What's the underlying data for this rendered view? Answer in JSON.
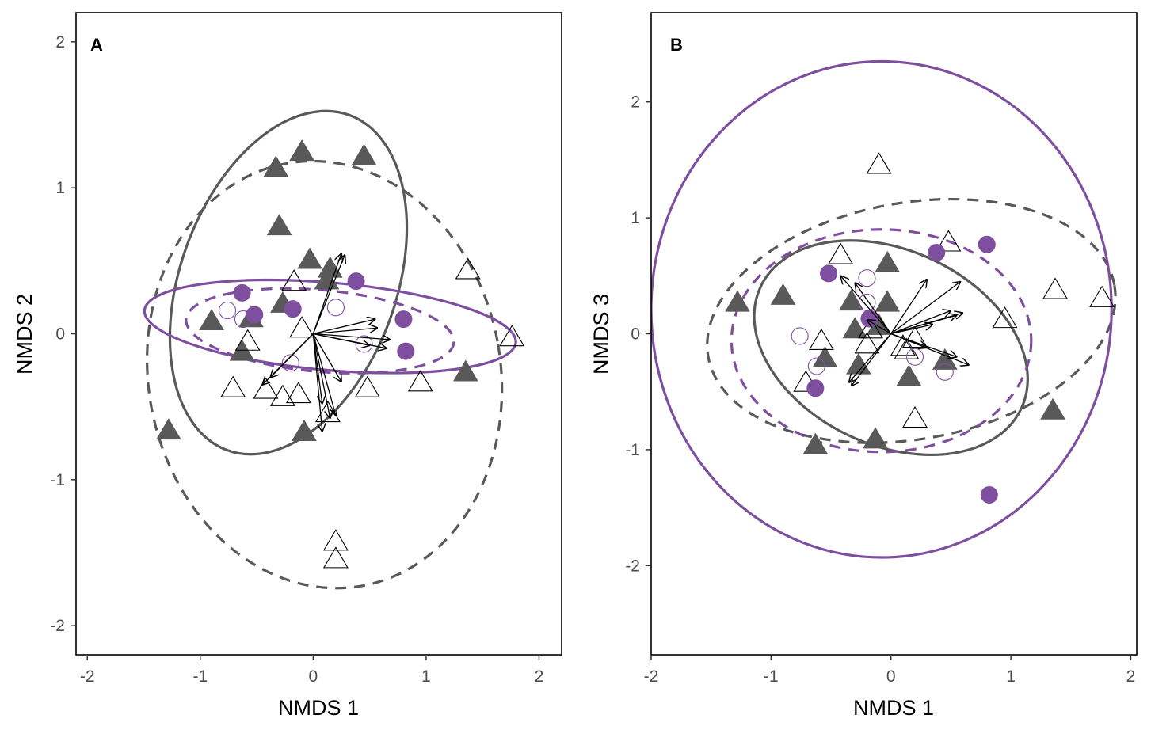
{
  "colors": {
    "purple": "#7f4f9f",
    "gray": "#595959",
    "black": "#000000"
  },
  "chart_data": [
    {
      "type": "scatter",
      "panel_label": "A",
      "xlabel": "NMDS 1",
      "ylabel": "NMDS 2",
      "xlim": [
        -2.1,
        2.2
      ],
      "ylim": [
        -2.2,
        2.2
      ],
      "xticks": [
        -2,
        -1,
        0,
        1,
        2
      ],
      "yticks": [
        -2,
        -1,
        0,
        1,
        2
      ],
      "grid": false,
      "series": [
        {
          "group": "filled-triangle",
          "points": [
            [
              -0.1,
              1.24
            ],
            [
              0.45,
              1.21
            ],
            [
              -0.33,
              1.13
            ],
            [
              -0.3,
              0.73
            ],
            [
              -0.03,
              0.5
            ],
            [
              0.15,
              0.44
            ],
            [
              0.12,
              0.36
            ],
            [
              -0.27,
              0.2
            ],
            [
              -0.9,
              0.08
            ],
            [
              -0.55,
              0.1
            ],
            [
              -0.63,
              -0.13
            ],
            [
              -1.28,
              -0.67
            ],
            [
              -0.08,
              -0.68
            ],
            [
              1.35,
              -0.27
            ]
          ]
        },
        {
          "group": "open-triangle",
          "points": [
            [
              -0.17,
              0.35
            ],
            [
              -0.58,
              -0.06
            ],
            [
              -0.1,
              0.03
            ],
            [
              -0.71,
              -0.38
            ],
            [
              -0.42,
              -0.39
            ],
            [
              -0.27,
              -0.44
            ],
            [
              -0.13,
              -0.42
            ],
            [
              0.48,
              -0.38
            ],
            [
              0.95,
              -0.34
            ],
            [
              1.37,
              0.43
            ],
            [
              1.76,
              -0.03
            ],
            [
              0.2,
              -1.43
            ],
            [
              0.2,
              -1.55
            ],
            [
              0.13,
              -0.55
            ]
          ]
        },
        {
          "group": "filled-circle",
          "points": [
            [
              -0.63,
              0.28
            ],
            [
              0.38,
              0.36
            ],
            [
              -0.18,
              0.17
            ],
            [
              -0.52,
              0.13
            ],
            [
              0.8,
              0.1
            ],
            [
              0.82,
              -0.12
            ]
          ]
        },
        {
          "group": "open-circle",
          "points": [
            [
              -0.76,
              0.16
            ],
            [
              -0.62,
              0.1
            ],
            [
              0.2,
              0.18
            ],
            [
              -0.2,
              -0.2
            ],
            [
              0.45,
              -0.07
            ]
          ]
        }
      ],
      "ellipses": [
        {
          "style": "gray-solid",
          "cx": -0.22,
          "cy": 0.35,
          "rx": 1.58,
          "ry": 0.74,
          "rotation_deg": 70
        },
        {
          "style": "gray-dashed",
          "cx": 0.1,
          "cy": -0.28,
          "rx": 1.56,
          "ry": 1.47,
          "rotation_deg": 10
        },
        {
          "style": "purple-solid",
          "cx": 0.15,
          "cy": 0.05,
          "rx": 1.65,
          "ry": 0.3,
          "rotation_deg": -5
        },
        {
          "style": "purple-dashed",
          "cx": 0.06,
          "cy": 0.02,
          "rx": 1.19,
          "ry": 0.28,
          "rotation_deg": -5
        }
      ],
      "arrows": [
        [
          0.28,
          0.54
        ],
        [
          0.25,
          0.55
        ],
        [
          0.55,
          0.1
        ],
        [
          0.57,
          0.04
        ],
        [
          0.68,
          -0.04
        ],
        [
          0.65,
          -0.1
        ],
        [
          0.5,
          -0.08
        ],
        [
          -0.45,
          -0.35
        ],
        [
          -0.38,
          -0.3
        ],
        [
          0.08,
          -0.48
        ],
        [
          0.25,
          -0.33
        ],
        [
          0.2,
          -0.56
        ],
        [
          0.15,
          -0.58
        ],
        [
          0.08,
          -0.67
        ]
      ]
    },
    {
      "type": "scatter",
      "panel_label": "B",
      "xlabel": "NMDS 1",
      "ylabel": "NMDS 3",
      "xlim": [
        -2.0,
        2.05
      ],
      "ylim": [
        -2.77,
        2.77
      ],
      "xticks": [
        -2,
        -1,
        0,
        1,
        2
      ],
      "yticks": [
        -2,
        -1,
        0,
        1,
        2
      ],
      "grid": false,
      "series": [
        {
          "group": "filled-triangle",
          "points": [
            [
              -1.28,
              0.26
            ],
            [
              -0.9,
              0.32
            ],
            [
              -0.33,
              0.27
            ],
            [
              -0.03,
              0.6
            ],
            [
              -0.3,
              0.03
            ],
            [
              -0.1,
              0.06
            ],
            [
              -0.03,
              0.26
            ],
            [
              -0.55,
              -0.22
            ],
            [
              -0.27,
              -0.28
            ],
            [
              -0.63,
              -0.97
            ],
            [
              -0.13,
              -0.92
            ],
            [
              0.15,
              -0.38
            ],
            [
              0.45,
              -0.24
            ],
            [
              1.35,
              -0.67
            ]
          ]
        },
        {
          "group": "open-triangle",
          "points": [
            [
              -0.1,
              1.45
            ],
            [
              -0.42,
              0.67
            ],
            [
              0.48,
              0.78
            ],
            [
              1.37,
              0.37
            ],
            [
              1.76,
              0.3
            ],
            [
              0.95,
              0.12
            ],
            [
              -0.17,
              0.03
            ],
            [
              -0.58,
              -0.07
            ],
            [
              -0.71,
              -0.43
            ],
            [
              -0.2,
              -0.1
            ],
            [
              0.1,
              -0.12
            ],
            [
              0.2,
              -0.74
            ],
            [
              0.2,
              -0.05
            ],
            [
              0.13,
              -0.15
            ]
          ]
        },
        {
          "group": "filled-circle",
          "points": [
            [
              -0.52,
              0.52
            ],
            [
              0.38,
              0.7
            ],
            [
              0.8,
              0.77
            ],
            [
              -0.18,
              0.13
            ],
            [
              -0.63,
              -0.47
            ],
            [
              0.82,
              -1.39
            ]
          ]
        },
        {
          "group": "open-circle",
          "points": [
            [
              -0.76,
              -0.02
            ],
            [
              -0.62,
              -0.28
            ],
            [
              -0.2,
              0.48
            ],
            [
              -0.2,
              0.27
            ],
            [
              0.2,
              -0.2
            ],
            [
              0.45,
              -0.33
            ]
          ]
        }
      ],
      "ellipses": [
        {
          "style": "gray-solid",
          "cx": 0.0,
          "cy": -0.12,
          "rx": 1.2,
          "ry": 0.84,
          "rotation_deg": -25
        },
        {
          "style": "gray-dashed",
          "cx": 0.17,
          "cy": 0.11,
          "rx": 1.72,
          "ry": 1.02,
          "rotation_deg": 10
        },
        {
          "style": "purple-solid",
          "cx": -0.08,
          "cy": 0.21,
          "rx": 1.92,
          "ry": 2.14,
          "rotation_deg": 0
        },
        {
          "style": "purple-dashed",
          "cx": -0.08,
          "cy": -0.06,
          "rx": 1.25,
          "ry": 0.96,
          "rotation_deg": 0
        }
      ],
      "arrows": [
        [
          -0.42,
          0.5
        ],
        [
          -0.3,
          0.44
        ],
        [
          0.3,
          0.47
        ],
        [
          0.58,
          0.45
        ],
        [
          0.5,
          0.2
        ],
        [
          0.55,
          0.16
        ],
        [
          0.6,
          0.18
        ],
        [
          0.35,
          0.08
        ],
        [
          -0.35,
          -0.42
        ],
        [
          -0.33,
          -0.45
        ],
        [
          0.3,
          -0.12
        ],
        [
          0.65,
          -0.27
        ],
        [
          0.55,
          -0.2
        ],
        [
          -0.2,
          0.12
        ]
      ]
    }
  ]
}
